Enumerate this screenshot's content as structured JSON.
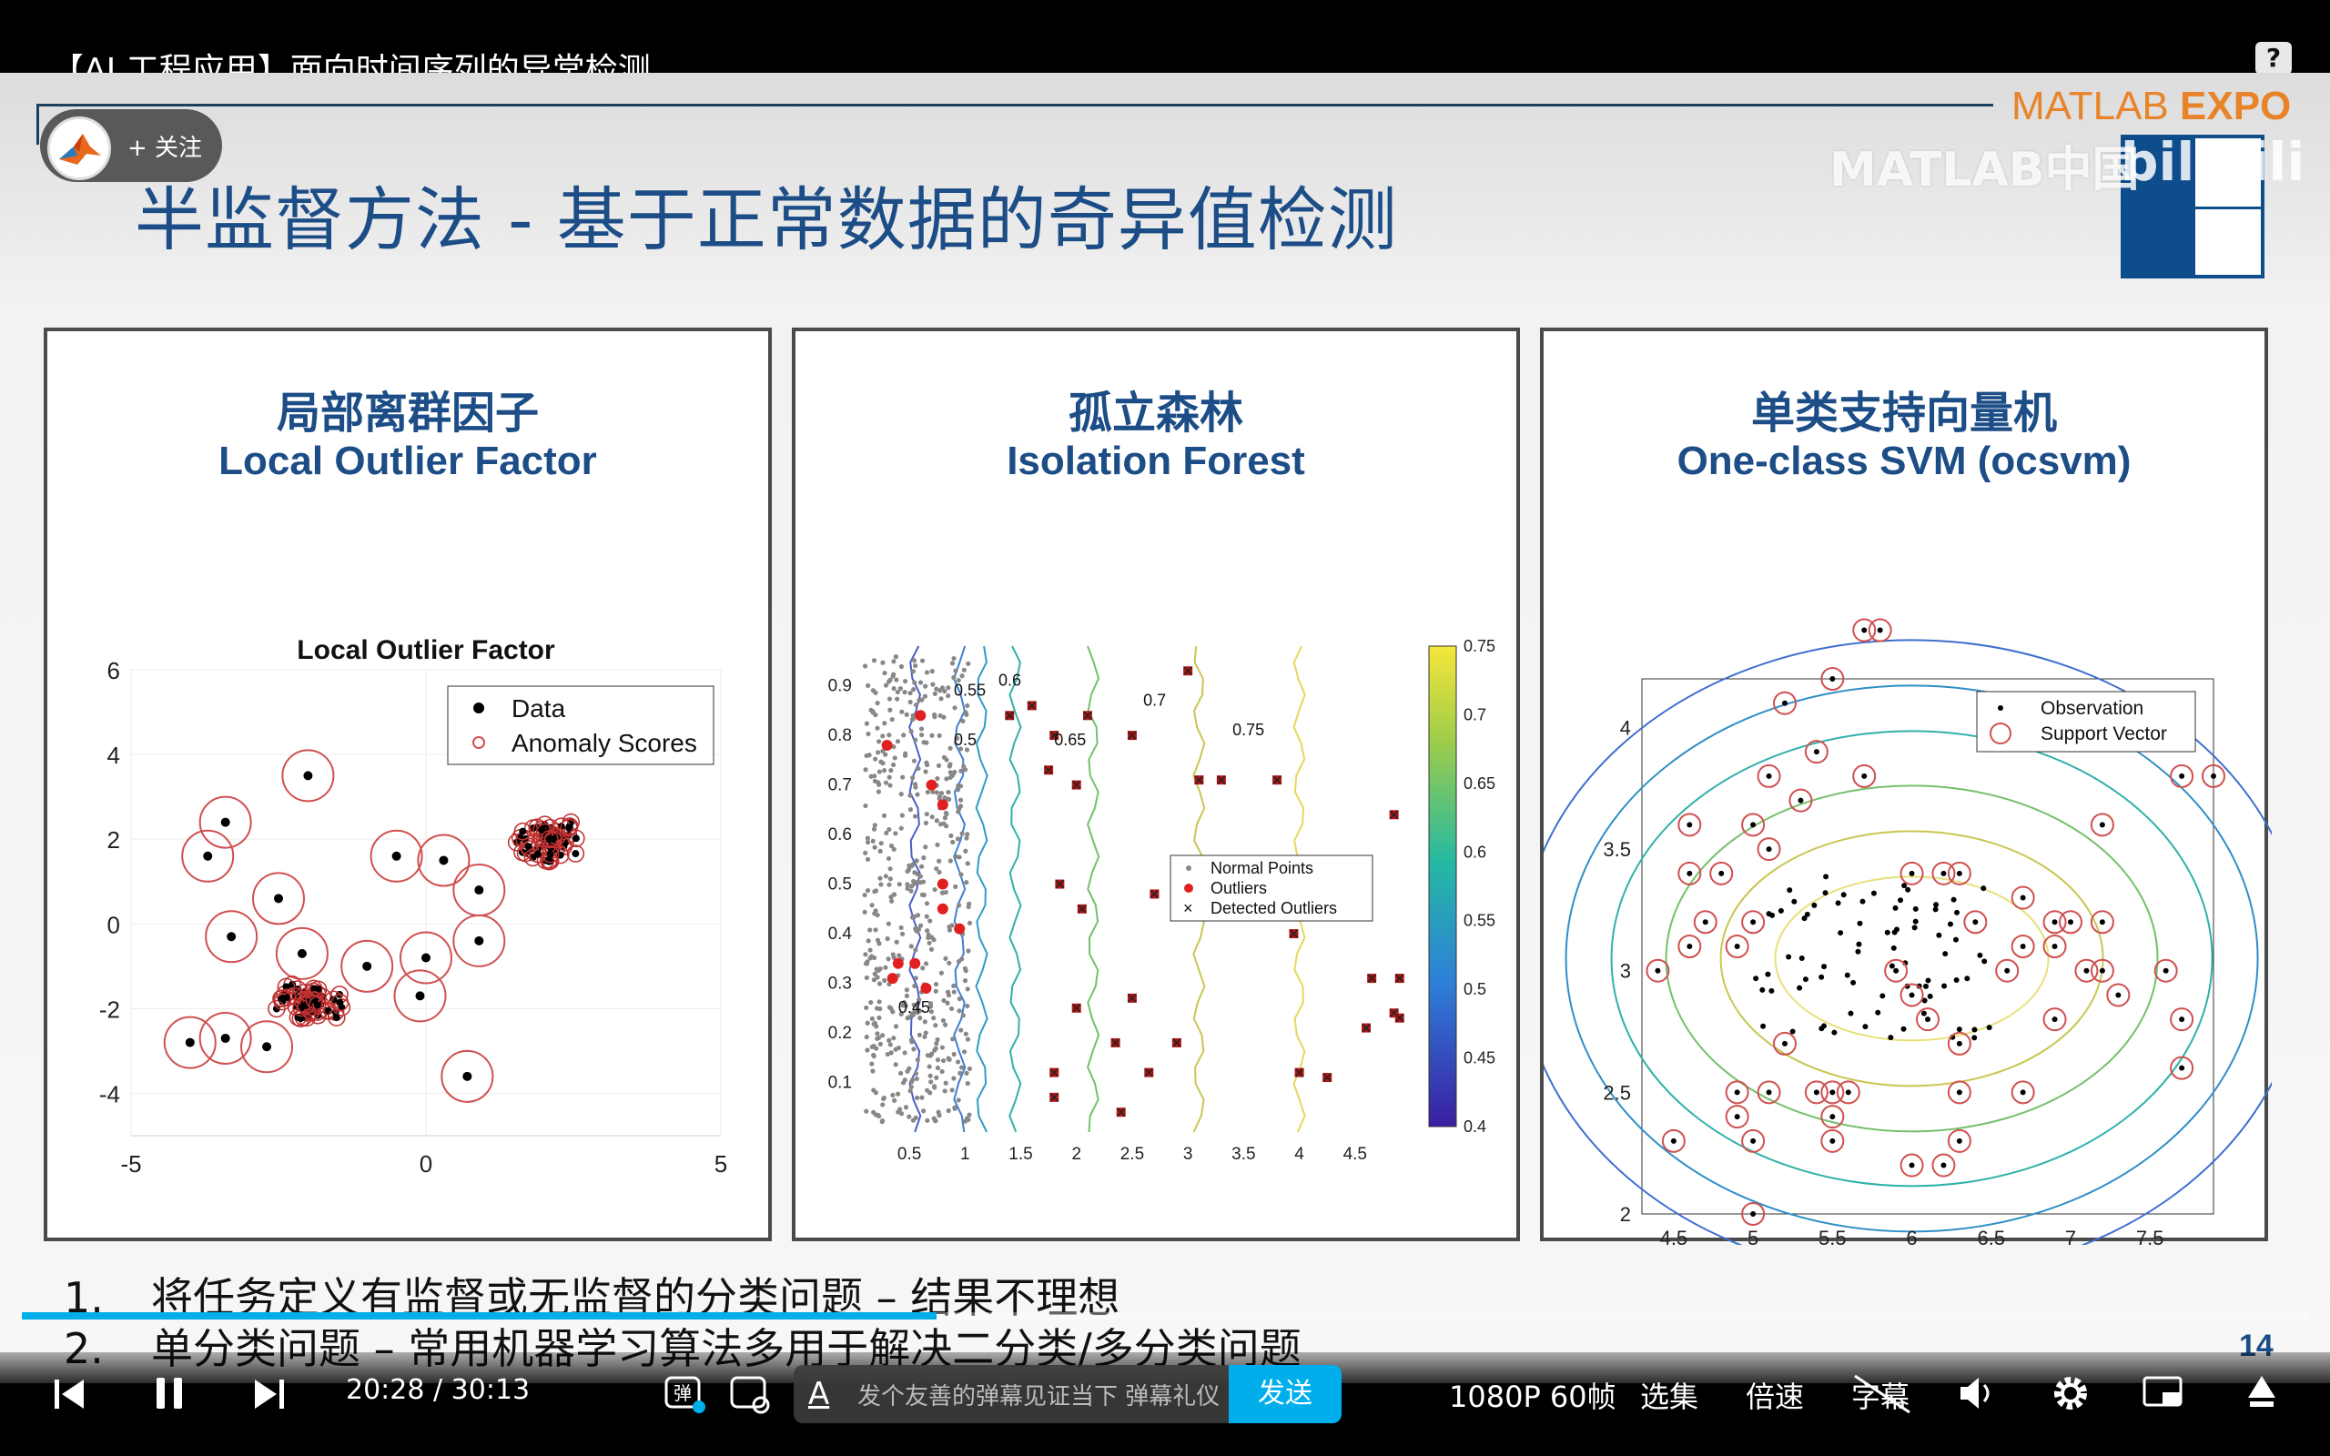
{
  "player": {
    "video_title": "【AI 工程应用】面向时间序列的异常检测",
    "help_glyph": "?",
    "follow_label": "+ 关注",
    "progress_fraction": 0.4,
    "current_time": "20:28",
    "separator": "/",
    "duration": "30:13",
    "danmaku_placeholder": "发个友善的弹幕见证当下",
    "danmaku_etiquette": "弹幕礼仪 ›",
    "send_label": "发送",
    "quality": "1080P 60帧",
    "episodes": "选集",
    "speed": "倍速",
    "subtitle": "字幕",
    "icons": [
      "prev-icon",
      "pause-icon",
      "next-icon",
      "danmaku-toggle-icon",
      "danmaku-settings-icon",
      "volume-icon",
      "settings-icon",
      "pip-icon",
      "fullscreen-icon"
    ]
  },
  "slide": {
    "title": "半监督方法 - 基于正常数据的奇异值检测",
    "expo_logo_a": "MATLAB",
    "expo_logo_b": "EXPO",
    "watermark_matlab": "MATLAB中国",
    "watermark_bili": "bilibili",
    "page_number": "14",
    "panels": [
      {
        "title_cn": "局部离群因子",
        "title_en": "Local Outlier Factor"
      },
      {
        "title_cn": "孤立森林",
        "title_en": "Isolation Forest"
      },
      {
        "title_cn": "单类支持向量机",
        "title_en": "One-class SVM (ocsvm)"
      }
    ],
    "bullets": [
      {
        "num": "1.",
        "text": "将任务定义有监督或无监督的分类问题 – 结果不理想"
      },
      {
        "num": "2.",
        "text": "单分类问题 – 常用机器学习算法多用于解决二分类/多分类问题"
      }
    ]
  },
  "chart_data": [
    {
      "type": "scatter",
      "title": "Local Outlier Factor",
      "xlim": [
        -5,
        5
      ],
      "ylim": [
        -5,
        6
      ],
      "xticks": [
        -5,
        0,
        5
      ],
      "yticks": [
        6,
        4,
        2,
        0,
        -2,
        -4
      ],
      "legend": [
        "Data",
        "Anomaly Scores"
      ],
      "legend_position": "top-right",
      "outliers": [
        [
          -2,
          3.5
        ],
        [
          -3.4,
          2.4
        ],
        [
          -3.7,
          1.6
        ],
        [
          -2.5,
          0.6
        ],
        [
          -3.3,
          -0.3
        ],
        [
          -2.1,
          -0.7
        ],
        [
          -1.0,
          -1.0
        ],
        [
          -0.5,
          1.6
        ],
        [
          0.3,
          1.5
        ],
        [
          0.9,
          0.8
        ],
        [
          0.9,
          -0.4
        ],
        [
          0,
          -0.8
        ],
        [
          -0.1,
          -1.7
        ],
        [
          0.7,
          -3.6
        ],
        [
          -4.0,
          -2.8
        ],
        [
          -3.4,
          -2.7
        ],
        [
          -2.7,
          -2.9
        ]
      ],
      "clusters": [
        {
          "center": [
            2.1,
            2.0
          ]
        },
        {
          "center": [
            -2.0,
            -1.9
          ]
        }
      ]
    },
    {
      "type": "scatter",
      "title": "",
      "xticks": [
        0.5,
        1,
        1.5,
        2,
        2.5,
        3,
        3.5,
        4,
        4.5
      ],
      "yticks": [
        0.1,
        0.2,
        0.3,
        0.4,
        0.5,
        0.6,
        0.7,
        0.8,
        0.9
      ],
      "colorbar_ticks": [
        0.75,
        0.7,
        0.65,
        0.6,
        0.55,
        0.5,
        0.45,
        0.4
      ],
      "contour_labels": [
        "0.55",
        "0.6",
        "0.65",
        "0.7",
        "0.75",
        "0.5",
        "0.45"
      ],
      "legend": [
        "Normal Points",
        "Outliers",
        "Detected Outliers"
      ],
      "detected_outliers": [
        [
          1.4,
          0.84
        ],
        [
          1.6,
          0.86
        ],
        [
          1.8,
          0.8
        ],
        [
          1.75,
          0.73
        ],
        [
          1.85,
          0.5
        ],
        [
          2.0,
          0.7
        ],
        [
          2.05,
          0.45
        ],
        [
          2.1,
          0.84
        ],
        [
          2.5,
          0.8
        ],
        [
          2.7,
          0.48
        ],
        [
          3.0,
          0.93
        ],
        [
          3.1,
          0.71
        ],
        [
          3.3,
          0.71
        ],
        [
          3.8,
          0.71
        ],
        [
          3.95,
          0.4
        ],
        [
          4.85,
          0.64
        ],
        [
          2.5,
          0.27
        ],
        [
          2.0,
          0.25
        ],
        [
          1.8,
          0.12
        ],
        [
          2.35,
          0.18
        ],
        [
          2.65,
          0.12
        ],
        [
          2.9,
          0.18
        ],
        [
          2.4,
          0.04
        ],
        [
          1.8,
          0.07
        ],
        [
          4.0,
          0.12
        ],
        [
          4.25,
          0.11
        ],
        [
          4.6,
          0.21
        ],
        [
          4.65,
          0.31
        ],
        [
          4.85,
          0.24
        ],
        [
          4.9,
          0.31
        ],
        [
          4.9,
          0.23
        ]
      ],
      "outliers": [
        [
          0.6,
          0.84
        ],
        [
          0.3,
          0.78
        ],
        [
          0.7,
          0.7
        ],
        [
          0.8,
          0.66
        ],
        [
          0.8,
          0.5
        ],
        [
          0.8,
          0.45
        ],
        [
          0.95,
          0.41
        ],
        [
          0.4,
          0.34
        ],
        [
          0.55,
          0.34
        ],
        [
          0.35,
          0.31
        ],
        [
          0.65,
          0.29
        ]
      ]
    },
    {
      "type": "scatter",
      "title": "",
      "xticks": [
        4.5,
        5,
        5.5,
        6,
        6.5,
        7,
        7.5
      ],
      "yticks": [
        4,
        3.5,
        3,
        2.5,
        2
      ],
      "xlim": [
        4.3,
        7.9
      ],
      "ylim": [
        2,
        4.2
      ],
      "legend": [
        "Observation",
        "Support Vector"
      ],
      "legend_position": "top-right",
      "support_vectors": [
        [
          5.8,
          4.4
        ],
        [
          5.5,
          4.2
        ],
        [
          5.7,
          4.4
        ],
        [
          5.2,
          4.1
        ],
        [
          5.4,
          3.9
        ],
        [
          5.7,
          3.8
        ],
        [
          5.1,
          3.8
        ],
        [
          5.3,
          3.7
        ],
        [
          5.0,
          3.6
        ],
        [
          5.1,
          3.5
        ],
        [
          4.6,
          3.6
        ],
        [
          4.7,
          3.2
        ],
        [
          4.6,
          3.4
        ],
        [
          4.6,
          3.1
        ],
        [
          4.4,
          3.0
        ],
        [
          4.9,
          3.1
        ],
        [
          4.8,
          3.4
        ],
        [
          5.0,
          3.2
        ],
        [
          6.0,
          3.4
        ],
        [
          6.2,
          3.4
        ],
        [
          6.3,
          3.4
        ],
        [
          6.6,
          3.0
        ],
        [
          6.7,
          3.1
        ],
        [
          6.9,
          3.1
        ],
        [
          7.0,
          3.2
        ],
        [
          7.2,
          3.2
        ],
        [
          7.2,
          3.0
        ],
        [
          7.6,
          3.0
        ],
        [
          7.7,
          2.8
        ],
        [
          7.7,
          2.6
        ],
        [
          7.3,
          2.9
        ],
        [
          7.1,
          3.0
        ],
        [
          6.9,
          3.2
        ],
        [
          6.7,
          3.3
        ],
        [
          6.4,
          3.2
        ],
        [
          6.3,
          2.7
        ],
        [
          6.1,
          2.8
        ],
        [
          6.0,
          2.2
        ],
        [
          6.2,
          2.2
        ],
        [
          6.3,
          2.3
        ],
        [
          6.3,
          2.5
        ],
        [
          6.7,
          2.5
        ],
        [
          6.9,
          2.8
        ],
        [
          5.9,
          3.0
        ],
        [
          5.6,
          2.5
        ],
        [
          5.4,
          2.5
        ],
        [
          5.5,
          2.5
        ],
        [
          5.5,
          2.3
        ],
        [
          5.5,
          2.4
        ],
        [
          5.1,
          2.5
        ],
        [
          4.9,
          2.5
        ],
        [
          4.9,
          2.4
        ],
        [
          5.0,
          2.3
        ],
        [
          4.5,
          2.3
        ],
        [
          5.0,
          2.0
        ],
        [
          5.2,
          2.7
        ],
        [
          7.9,
          3.8
        ],
        [
          7.7,
          3.8
        ],
        [
          7.2,
          3.6
        ],
        [
          6.0,
          2.9
        ]
      ]
    }
  ]
}
